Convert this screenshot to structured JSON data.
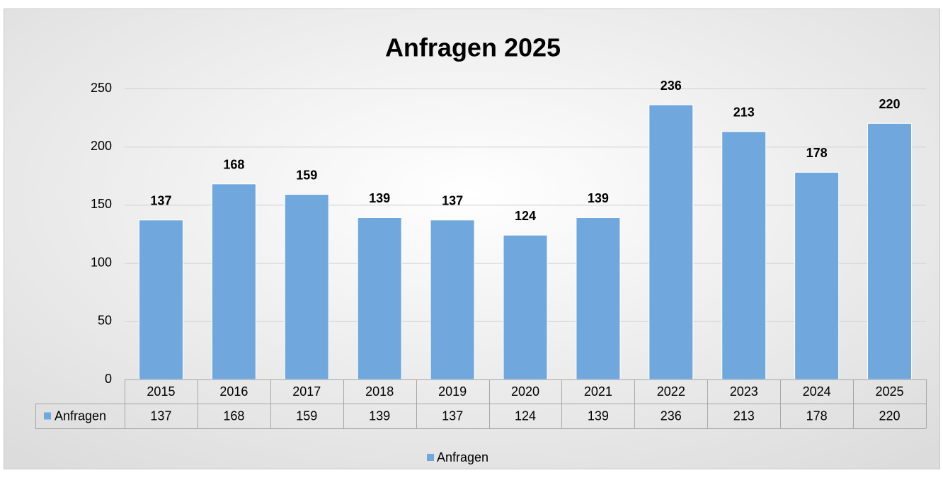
{
  "chart_data": {
    "type": "bar",
    "title": "Anfragen 2025",
    "categories": [
      "2015",
      "2016",
      "2017",
      "2018",
      "2019",
      "2020",
      "2021",
      "2022",
      "2023",
      "2024",
      "2025"
    ],
    "series": [
      {
        "name": "Anfragen",
        "color": "#70a7dc",
        "values": [
          137,
          168,
          159,
          139,
          137,
          124,
          139,
          236,
          213,
          178,
          220
        ]
      }
    ],
    "ylim": [
      0,
      250
    ],
    "yticks": [
      0,
      50,
      100,
      150,
      200,
      250
    ],
    "grid": true,
    "legend": "bottom",
    "data_table": true
  }
}
